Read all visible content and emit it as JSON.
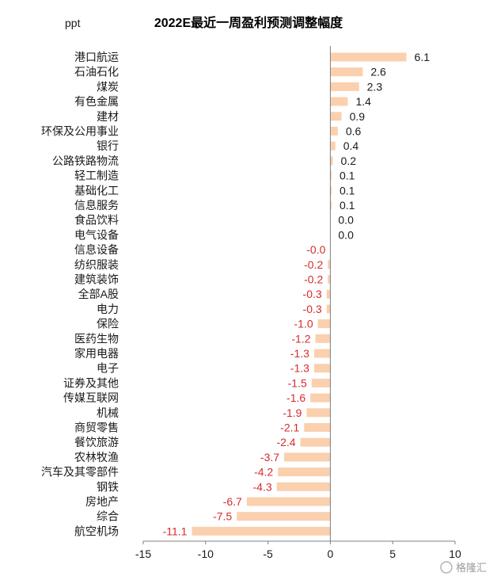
{
  "chart_data": {
    "type": "bar",
    "orientation": "horizontal",
    "title": "2022E最近一周盈利预测调整幅度",
    "unit_label": "ppt",
    "categories": [
      "港口航运",
      "石油石化",
      "煤炭",
      "有色金属",
      "建材",
      "环保及公用事业",
      "银行",
      "公路铁路物流",
      "轻工制造",
      "基础化工",
      "信息服务",
      "食品饮料",
      "电气设备",
      "信息设备",
      "纺织服装",
      "建筑装饰",
      "全部A股",
      "电力",
      "保险",
      "医药生物",
      "家用电器",
      "电子",
      "证券及其他",
      "传媒互联网",
      "机械",
      "商贸零售",
      "餐饮旅游",
      "农林牧渔",
      "汽车及其零部件",
      "钢铁",
      "房地产",
      "综合",
      "航空机场"
    ],
    "values": [
      6.1,
      2.6,
      2.3,
      1.4,
      0.9,
      0.6,
      0.4,
      0.2,
      0.1,
      0.1,
      0.1,
      0.0,
      0.0,
      -0.0,
      -0.2,
      -0.2,
      -0.3,
      -0.3,
      -1.0,
      -1.2,
      -1.3,
      -1.3,
      -1.5,
      -1.6,
      -1.9,
      -2.1,
      -2.4,
      -3.7,
      -4.2,
      -4.3,
      -6.7,
      -7.5,
      -11.1
    ],
    "value_labels": [
      "6.1",
      "2.6",
      "2.3",
      "1.4",
      "0.9",
      "0.6",
      "0.4",
      "0.2",
      "0.1",
      "0.1",
      "0.1",
      "0.0",
      "0.0",
      "-0.0",
      "-0.2",
      "-0.2",
      "-0.3",
      "-0.3",
      "-1.0",
      "-1.2",
      "-1.3",
      "-1.3",
      "-1.5",
      "-1.6",
      "-1.9",
      "-2.1",
      "-2.4",
      "-3.7",
      "-4.2",
      "-4.3",
      "-6.7",
      "-7.5",
      "-11.1"
    ],
    "xlim": [
      -15,
      10
    ],
    "xticks": [
      -15,
      -10,
      -5,
      0,
      5,
      10
    ],
    "xtick_labels": [
      "-15",
      "-10",
      "-5",
      "0",
      "5",
      "10"
    ],
    "grid": false,
    "legend": "none",
    "colors": {
      "bar": "#fbd0ae",
      "positive_label": "#1a1a1a",
      "negative_label": "#d62b2b",
      "axis": "#7f7f7f"
    }
  },
  "watermark": "格隆汇"
}
